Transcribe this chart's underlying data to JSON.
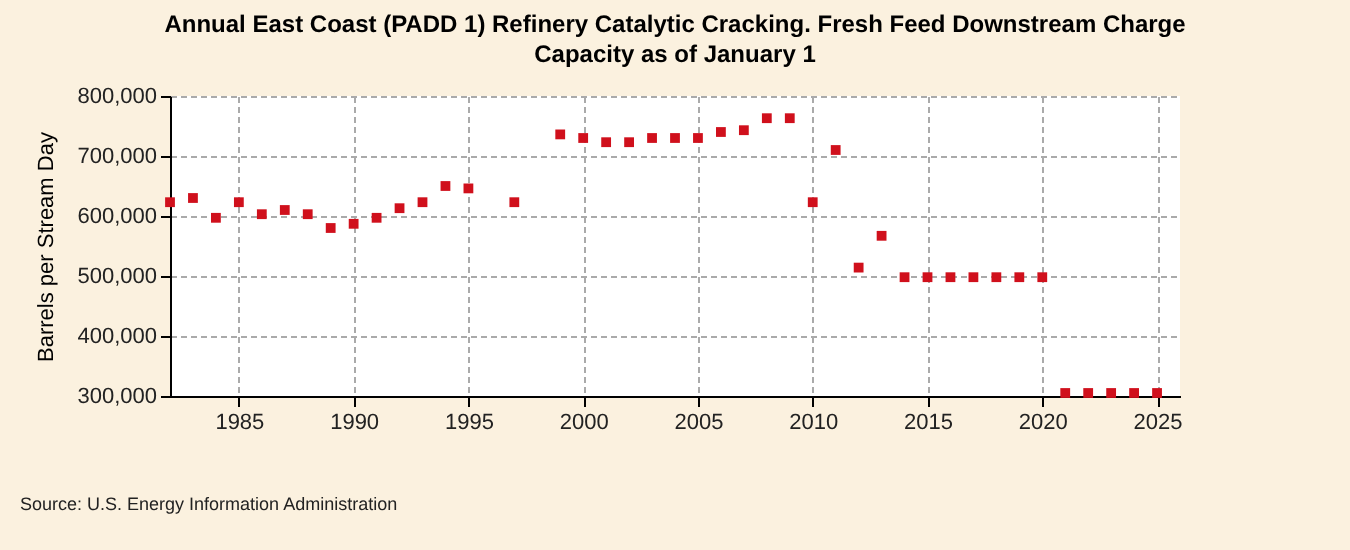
{
  "chart_data": {
    "type": "scatter",
    "title": "Annual East Coast (PADD 1) Refinery Catalytic Cracking. Fresh Feed Downstream Charge Capacity as of January 1",
    "ylabel": "Barrels per Stream Day",
    "x": [
      1982,
      1983,
      1984,
      1985,
      1986,
      1987,
      1988,
      1989,
      1990,
      1991,
      1992,
      1993,
      1994,
      1995,
      1997,
      1999,
      2000,
      2001,
      2002,
      2003,
      2004,
      2005,
      2006,
      2007,
      2008,
      2009,
      2010,
      2011,
      2012,
      2013,
      2014,
      2015,
      2016,
      2017,
      2018,
      2019,
      2020,
      2021,
      2022,
      2023,
      2024,
      2025
    ],
    "series": [
      {
        "color": "#d0101c",
        "values": [
          623000,
          630000,
          597000,
          623000,
          603000,
          610000,
          603000,
          580000,
          587000,
          597000,
          613000,
          623000,
          650000,
          646000,
          623000,
          736000,
          730000,
          723000,
          723000,
          730000,
          730000,
          730000,
          740000,
          743000,
          763000,
          763000,
          623000,
          710000,
          514000,
          567000,
          498000,
          498000,
          498000,
          498000,
          498000,
          498000,
          498000,
          305000,
          305000,
          305000,
          305000,
          305000
        ]
      }
    ],
    "xlim": [
      1982,
      2026
    ],
    "xticks": [
      1985,
      1990,
      1995,
      2000,
      2005,
      2010,
      2015,
      2020,
      2025
    ],
    "ylim": [
      300000,
      800000
    ],
    "yticks": [
      {
        "value": 300000,
        "label": "300,000"
      },
      {
        "value": 400000,
        "label": "400,000"
      },
      {
        "value": 500000,
        "label": "500,000"
      },
      {
        "value": 600000,
        "label": "600,000"
      },
      {
        "value": 700000,
        "label": "700,000"
      },
      {
        "value": 800000,
        "label": "800,000"
      }
    ],
    "grid": true,
    "marker": "square",
    "legend": false,
    "annotations": [
      "Source: U.S. Energy Information Administration"
    ]
  }
}
